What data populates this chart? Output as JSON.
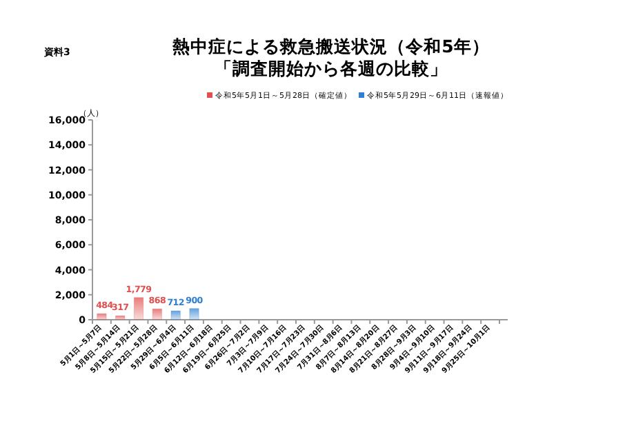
{
  "chart_data": {
    "type": "bar",
    "title": "熱中症による救急搬送状況（令和5年）",
    "subtitle": "「調査開始から各週の比較」",
    "ylabel": "（人）",
    "annotations": [
      "資料3"
    ],
    "categories": [
      "5月1日～5月7日",
      "5月8日～5月14日",
      "5月15日～5月21日",
      "5月22日～5月28日",
      "5月29日～6月4日",
      "6月5日～6月11日",
      "6月12日～6月18日",
      "6月19日～6月25日",
      "6月26日～7月2日",
      "7月3日～7月9日",
      "7月10日～7月16日",
      "7月17日～7月23日",
      "7月24日～7月30日",
      "7月31日～8月6日",
      "8月7日～8月13日",
      "8月14日～8月20日",
      "8月21日～8月27日",
      "8月28日～9月3日",
      "9月4日～9月10日",
      "9月11日～9月17日",
      "9月18日～9月24日",
      "9月25日～10月1日"
    ],
    "series": [
      {
        "name": "令和5年5月1日～5月28日（確定値）",
        "color": "#e05050",
        "values": [
          484,
          317,
          1779,
          868,
          null,
          null,
          null,
          null,
          null,
          null,
          null,
          null,
          null,
          null,
          null,
          null,
          null,
          null,
          null,
          null,
          null,
          null
        ]
      },
      {
        "name": "令和5年5月29日～6月11日（速報値）",
        "color": "#2f80d0",
        "values": [
          null,
          null,
          null,
          null,
          712,
          900,
          null,
          null,
          null,
          null,
          null,
          null,
          null,
          null,
          null,
          null,
          null,
          null,
          null,
          null,
          null,
          null
        ]
      }
    ],
    "ylim": [
      0,
      16000
    ],
    "yticks": [
      {
        "value": 0,
        "label": "0"
      },
      {
        "value": 2000,
        "label": "2,000"
      },
      {
        "value": 4000,
        "label": "4,000"
      },
      {
        "value": 6000,
        "label": "6,000"
      },
      {
        "value": 8000,
        "label": "8,000"
      },
      {
        "value": 10000,
        "label": "10,000"
      },
      {
        "value": 12000,
        "label": "12,000"
      },
      {
        "value": 14000,
        "label": "14,000"
      },
      {
        "value": 16000,
        "label": "16,000"
      }
    ],
    "value_labels": [
      [
        "484",
        "317",
        "1,779",
        "868",
        null,
        null,
        null,
        null,
        null,
        null,
        null,
        null,
        null,
        null,
        null,
        null,
        null,
        null,
        null,
        null,
        null,
        null
      ],
      [
        null,
        null,
        null,
        null,
        "712",
        "900",
        null,
        null,
        null,
        null,
        null,
        null,
        null,
        null,
        null,
        null,
        null,
        null,
        null,
        null,
        null,
        null
      ]
    ],
    "legend": "top",
    "grid": false
  }
}
